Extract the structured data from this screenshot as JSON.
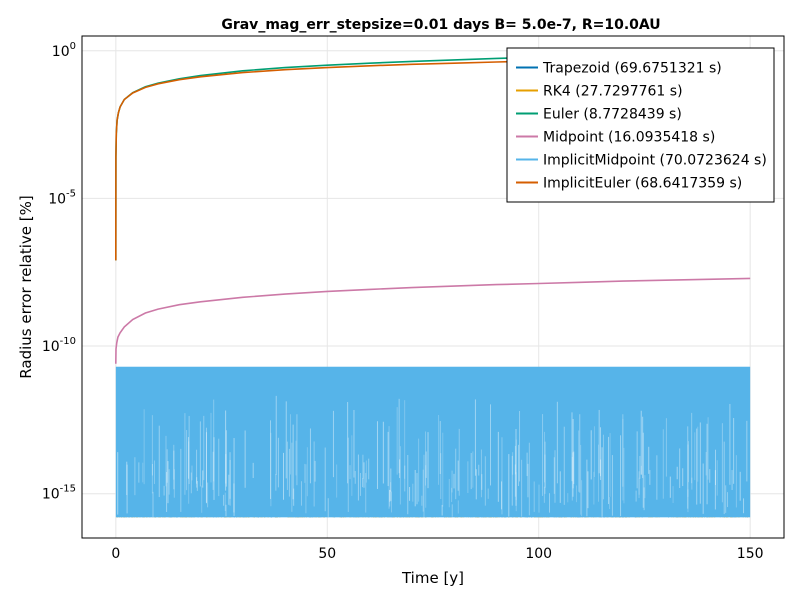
{
  "chart_data": {
    "type": "line",
    "title": "Grav_mag_err_stepsize=0.01 days B= 5.0e-7, R=10.0AU",
    "xlabel": "Time [y]",
    "ylabel": "Radius error relative [%]",
    "xlim": [
      -8,
      158
    ],
    "ylim_log10": [
      -16.5,
      0.5
    ],
    "yscale": "log10",
    "grid": true,
    "legend_position": "top-right",
    "x_ticks": [
      0,
      50,
      100,
      150
    ],
    "y_ticks": [
      {
        "log10": 0,
        "base": "10",
        "exp": "0"
      },
      {
        "log10": -5,
        "base": "10",
        "exp": "-5"
      },
      {
        "log10": -10,
        "base": "10",
        "exp": "-10"
      },
      {
        "log10": -15,
        "base": "10",
        "exp": "-15"
      }
    ],
    "series": [
      {
        "name": "Trapezoid (69.6751321 s)",
        "color": "#0072b2",
        "kind": "noise",
        "x_range": [
          0,
          150
        ],
        "log10_range": [
          -15.8,
          -12.0
        ]
      },
      {
        "name": "RK4 (27.7297761 s)",
        "color": "#e69f00",
        "kind": "noise",
        "x_range": [
          0,
          150
        ],
        "log10_range": [
          -15.8,
          -14.6
        ]
      },
      {
        "name": "Euler (8.7728439 s)",
        "color": "#009e73",
        "kind": "curve",
        "x": [
          0,
          0.02,
          0.1,
          0.3,
          0.6,
          1,
          2,
          4,
          7,
          10,
          15,
          20,
          30,
          40,
          50,
          60,
          70,
          80,
          90,
          100,
          110,
          120,
          130,
          140,
          150
        ],
        "log10": [
          -7.1,
          -3.6,
          -2.8,
          -2.35,
          -2.1,
          -1.9,
          -1.65,
          -1.42,
          -1.22,
          -1.1,
          -0.95,
          -0.84,
          -0.68,
          -0.57,
          -0.49,
          -0.42,
          -0.36,
          -0.31,
          -0.26,
          -0.22,
          -0.18,
          -0.14,
          -0.11,
          -0.08,
          -0.05
        ]
      },
      {
        "name": "Midpoint (16.0935418 s)",
        "color": "#cc79a7",
        "kind": "curve",
        "x": [
          0,
          0.05,
          0.2,
          0.5,
          1,
          2,
          4,
          7,
          10,
          15,
          20,
          30,
          40,
          50,
          60,
          70,
          80,
          90,
          100,
          110,
          120,
          130,
          140,
          150
        ],
        "log10": [
          -10.6,
          -10.1,
          -9.9,
          -9.7,
          -9.55,
          -9.35,
          -9.1,
          -8.88,
          -8.75,
          -8.6,
          -8.5,
          -8.35,
          -8.24,
          -8.15,
          -8.08,
          -8.02,
          -7.97,
          -7.92,
          -7.88,
          -7.84,
          -7.8,
          -7.77,
          -7.74,
          -7.71
        ]
      },
      {
        "name": "ImplicitMidpoint (70.0723624 s)",
        "color": "#56b4e9",
        "kind": "band",
        "x_range": [
          0,
          150
        ],
        "log10_range": [
          -15.8,
          -10.7
        ]
      },
      {
        "name": "ImplicitEuler (68.6417359 s)",
        "color": "#d55e00",
        "kind": "curve",
        "x": [
          0,
          0.02,
          0.1,
          0.3,
          0.6,
          1,
          2,
          4,
          7,
          10,
          15,
          20,
          30,
          40,
          50,
          60,
          70,
          80,
          90,
          100,
          110,
          120,
          130,
          140,
          150
        ],
        "log10": [
          -7.1,
          -3.6,
          -2.8,
          -2.35,
          -2.1,
          -1.9,
          -1.65,
          -1.43,
          -1.24,
          -1.12,
          -0.98,
          -0.88,
          -0.74,
          -0.64,
          -0.57,
          -0.51,
          -0.46,
          -0.42,
          -0.38,
          -0.35,
          -0.32,
          -0.29,
          -0.27,
          -0.25,
          -0.23
        ]
      }
    ]
  }
}
